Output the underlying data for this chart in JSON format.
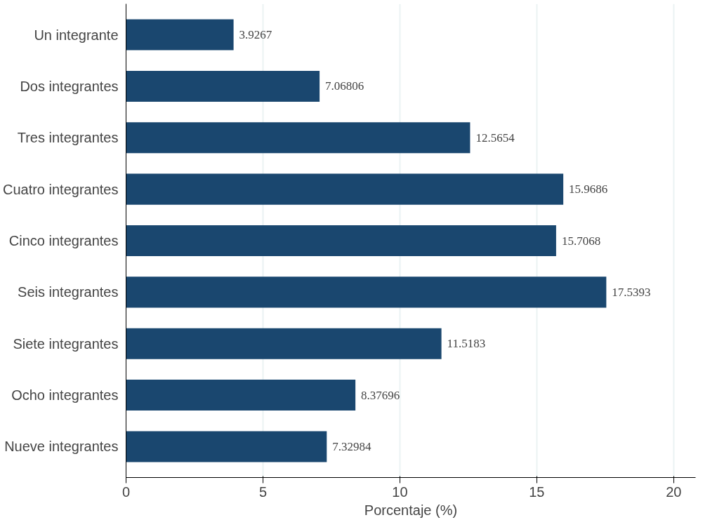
{
  "chart_data": {
    "type": "bar",
    "orientation": "horizontal",
    "xlabel": "Porcentaje (%)",
    "categories": [
      "Un integrante",
      "Dos integrantes",
      "Tres integrantes",
      "Cuatro integrantes",
      "Cinco integrantes",
      "Seis integrantes",
      "Siete integrantes",
      "Ocho integrantes",
      "Nueve integrantes"
    ],
    "values": [
      3.9267,
      7.06806,
      12.5654,
      15.9686,
      15.7068,
      17.5393,
      11.5183,
      8.37696,
      7.32984
    ],
    "color": "#1a476f",
    "xlim": [
      0,
      20.8
    ],
    "xticks": [
      0,
      5,
      10,
      15,
      20
    ],
    "grid": "x",
    "data_labels": true
  }
}
